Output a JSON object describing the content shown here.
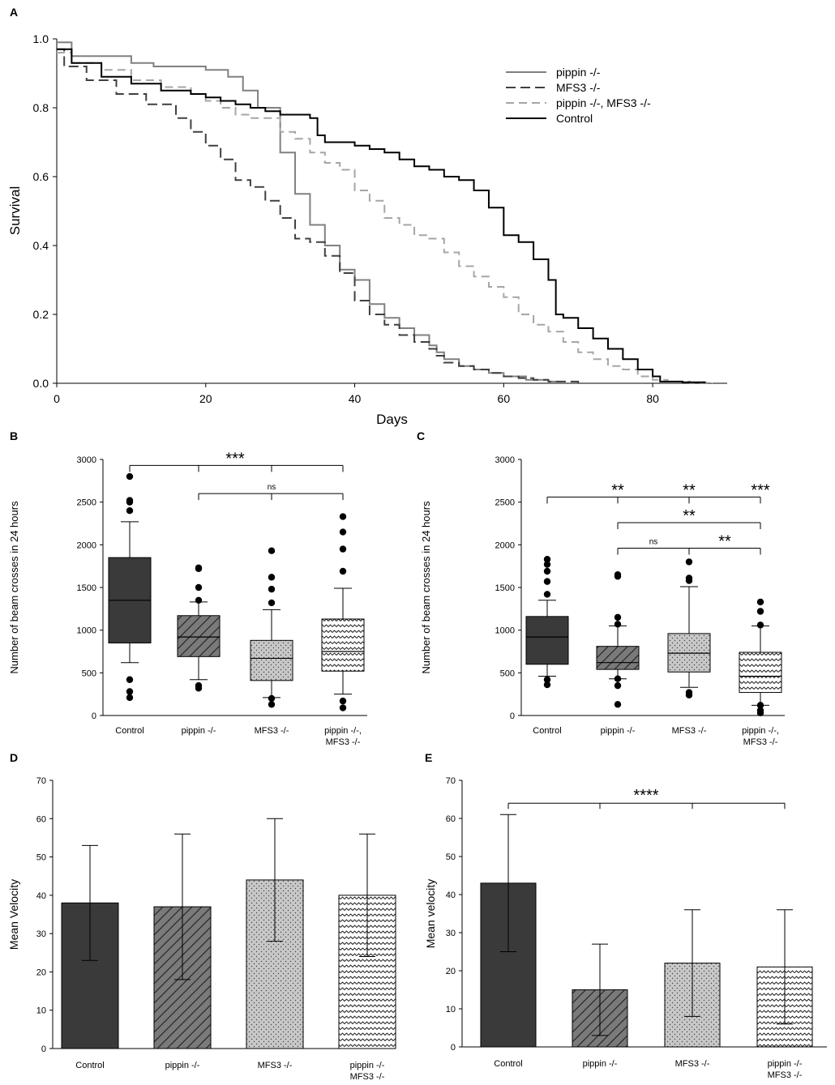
{
  "colors": {
    "control": "#3a3a3a",
    "pippin": "#7a7a7a",
    "mfs3": "#c8c8c8",
    "double": "#ffffff",
    "axis": "#000000",
    "curve_pippin": "#808080",
    "curve_mfs3": "#404040",
    "curve_double": "#a6a6a6",
    "curve_control": "#000000"
  },
  "chart_data": [
    {
      "panel": "A",
      "type": "line",
      "xlabel": "Days",
      "ylabel": "Survival",
      "xlim": [
        0,
        90
      ],
      "ylim": [
        0,
        1.0
      ],
      "xticks": [
        0,
        20,
        40,
        60,
        80
      ],
      "xtick_labels": [
        "0",
        "20",
        "40",
        "60",
        "80"
      ],
      "yticks": [
        0,
        0.2,
        0.4,
        0.6,
        0.8,
        1.0
      ],
      "ytick_labels": [
        "0.0",
        "0.2",
        "0.4",
        "0.6",
        "0.8",
        "1.0"
      ],
      "legend": "top-right",
      "series": [
        {
          "name": "pippin -/-",
          "key": "pippin",
          "dash": "solid",
          "x": [
            0,
            2,
            10,
            13,
            20,
            23,
            25,
            27,
            30,
            32,
            34,
            36,
            38,
            40,
            42,
            44,
            46,
            48,
            50,
            51,
            52,
            54,
            56,
            58,
            60,
            63,
            66,
            67
          ],
          "y": [
            0.99,
            0.95,
            0.93,
            0.92,
            0.91,
            0.89,
            0.85,
            0.8,
            0.67,
            0.55,
            0.46,
            0.4,
            0.33,
            0.3,
            0.23,
            0.19,
            0.16,
            0.14,
            0.11,
            0.09,
            0.07,
            0.05,
            0.04,
            0.03,
            0.02,
            0.01,
            0.005,
            0.0
          ]
        },
        {
          "name": "MFS3 -/-",
          "key": "mfs3",
          "dash": "long",
          "x": [
            0,
            1,
            4,
            8,
            12,
            16,
            18,
            20,
            22,
            24,
            26,
            28,
            30,
            32,
            34,
            36,
            38,
            40,
            42,
            44,
            46,
            48,
            50,
            51,
            52,
            54,
            56,
            58,
            60,
            62,
            64,
            66,
            70
          ],
          "y": [
            0.97,
            0.92,
            0.88,
            0.84,
            0.81,
            0.77,
            0.73,
            0.69,
            0.65,
            0.59,
            0.57,
            0.53,
            0.48,
            0.42,
            0.41,
            0.37,
            0.32,
            0.24,
            0.2,
            0.17,
            0.14,
            0.12,
            0.1,
            0.08,
            0.06,
            0.05,
            0.04,
            0.03,
            0.02,
            0.015,
            0.01,
            0.005,
            0.0
          ]
        },
        {
          "name": "pippin -/-, MFS3 -/-",
          "key": "double",
          "dash": "medium",
          "x": [
            0,
            2,
            6,
            10,
            14,
            18,
            20,
            22,
            24,
            26,
            30,
            32,
            34,
            36,
            38,
            40,
            42,
            44,
            46,
            48,
            50,
            52,
            54,
            56,
            58,
            60,
            62,
            64,
            66,
            68,
            70,
            72,
            74,
            76,
            78,
            80,
            82,
            85,
            88
          ],
          "y": [
            0.96,
            0.93,
            0.91,
            0.88,
            0.86,
            0.84,
            0.82,
            0.8,
            0.78,
            0.77,
            0.73,
            0.71,
            0.67,
            0.64,
            0.62,
            0.56,
            0.53,
            0.48,
            0.46,
            0.43,
            0.42,
            0.38,
            0.34,
            0.31,
            0.28,
            0.25,
            0.2,
            0.17,
            0.15,
            0.12,
            0.09,
            0.07,
            0.05,
            0.04,
            0.02,
            0.01,
            0.005,
            0.002,
            0.0
          ]
        },
        {
          "name": "Control",
          "key": "control",
          "dash": "solid",
          "x": [
            0,
            2,
            6,
            10,
            14,
            18,
            20,
            22,
            24,
            26,
            28,
            30,
            32,
            34,
            35,
            36,
            38,
            40,
            42,
            44,
            46,
            48,
            50,
            52,
            54,
            56,
            58,
            60,
            62,
            64,
            66,
            67,
            68,
            70,
            72,
            74,
            76,
            78,
            80,
            81,
            84,
            87
          ],
          "y": [
            0.97,
            0.93,
            0.89,
            0.87,
            0.85,
            0.84,
            0.83,
            0.82,
            0.81,
            0.8,
            0.79,
            0.78,
            0.78,
            0.77,
            0.72,
            0.7,
            0.7,
            0.69,
            0.68,
            0.67,
            0.65,
            0.63,
            0.62,
            0.6,
            0.59,
            0.56,
            0.51,
            0.43,
            0.41,
            0.36,
            0.3,
            0.2,
            0.19,
            0.16,
            0.13,
            0.1,
            0.07,
            0.04,
            0.02,
            0.005,
            0.003,
            0.0
          ]
        }
      ]
    },
    {
      "panel": "B",
      "type": "box",
      "ylabel": "Number of beam crosses in 24 hours",
      "ylim": [
        0,
        3000
      ],
      "yticks": [
        0,
        500,
        1000,
        1500,
        2000,
        2500,
        3000
      ],
      "ytick_labels": [
        "0",
        "500",
        "1000",
        "1500",
        "2000",
        "2500",
        "3000"
      ],
      "categories": [
        "Control",
        "pippin -/-",
        "MFS3 -/-",
        "pippin -/-,",
        "MFS3 -/-"
      ],
      "group_labels": [
        [
          "Control"
        ],
        [
          "pippin -/-"
        ],
        [
          "MFS3 -/-"
        ],
        [
          "pippin -/-,",
          "MFS3 -/-"
        ]
      ],
      "boxes": [
        {
          "key": "control",
          "q1": 850,
          "median": 1350,
          "q3": 1850,
          "wlo": 620,
          "whi": 2270,
          "outliers": [
            210,
            280,
            420,
            2400,
            2500,
            2520,
            2800
          ]
        },
        {
          "key": "pippin",
          "q1": 690,
          "median": 920,
          "q3": 1170,
          "wlo": 420,
          "whi": 1330,
          "outliers": [
            320,
            350,
            1350,
            1500,
            1720,
            1730
          ]
        },
        {
          "key": "mfs3",
          "q1": 410,
          "median": 670,
          "q3": 880,
          "wlo": 210,
          "whi": 1240,
          "outliers": [
            130,
            200,
            1320,
            1480,
            1620,
            1930
          ]
        },
        {
          "key": "double",
          "q1": 520,
          "median": 750,
          "q3": 1130,
          "wlo": 250,
          "whi": 1490,
          "outliers": [
            90,
            170,
            1690,
            1950,
            2150,
            2330
          ]
        }
      ],
      "significance": [
        {
          "label": "***",
          "from": 0,
          "to": 3,
          "y": 2930,
          "drops": [
            0,
            1,
            2,
            3
          ]
        },
        {
          "label": "ns",
          "from": 1,
          "to": 3,
          "y": 2600,
          "drops": [
            1,
            2,
            3
          ]
        }
      ]
    },
    {
      "panel": "C",
      "type": "box",
      "ylabel": "Number of beam crosses in 24 hours",
      "ylim": [
        0,
        3000
      ],
      "yticks": [
        0,
        500,
        1000,
        1500,
        2000,
        2500,
        3000
      ],
      "ytick_labels": [
        "0",
        "500",
        "1000",
        "1500",
        "2000",
        "2500",
        "3000"
      ],
      "categories": [
        "Control",
        "pippin -/-",
        "MFS3 -/-",
        "pippin -/-,",
        "MFS3 -/-"
      ],
      "group_labels": [
        [
          "Control"
        ],
        [
          "pippin -/-"
        ],
        [
          "MFS3 -/-"
        ],
        [
          "pippin -/-,",
          "MFS3 -/-"
        ]
      ],
      "boxes": [
        {
          "key": "control",
          "q1": 600,
          "median": 920,
          "q3": 1160,
          "wlo": 460,
          "whi": 1350,
          "outliers": [
            360,
            420,
            1420,
            1570,
            1690,
            1770,
            1830
          ]
        },
        {
          "key": "pippin",
          "q1": 540,
          "median": 620,
          "q3": 810,
          "wlo": 430,
          "whi": 1050,
          "outliers": [
            130,
            350,
            430,
            1070,
            1150,
            1630,
            1650
          ]
        },
        {
          "key": "mfs3",
          "q1": 510,
          "median": 730,
          "q3": 960,
          "wlo": 330,
          "whi": 1510,
          "outliers": [
            240,
            270,
            1580,
            1610,
            1800
          ]
        },
        {
          "key": "double",
          "q1": 270,
          "median": 460,
          "q3": 740,
          "wlo": 120,
          "whi": 1050,
          "outliers": [
            30,
            60,
            120,
            1060,
            1220,
            1330
          ]
        }
      ],
      "significance": [
        {
          "label": "**",
          "from": 0,
          "to": 3,
          "y": 2560,
          "drops": [
            0,
            1,
            2,
            3
          ],
          "marks": [
            {
              "label": "**",
              "pos": 1
            },
            {
              "label": "**",
              "pos": 2
            },
            {
              "label": "***",
              "pos": 3
            }
          ]
        },
        {
          "label": "**",
          "from": 1,
          "to": 3,
          "y": 2260,
          "drops": [
            1,
            3
          ],
          "marks": [
            {
              "label": "**",
              "pos": 2
            }
          ]
        },
        {
          "label": "ns",
          "from": 1,
          "to": 3,
          "y": 1960,
          "drops": [
            1,
            2,
            3
          ],
          "marks": [
            {
              "label": "ns",
              "pos": 1.5
            },
            {
              "label": "**",
              "pos": 2.5
            }
          ]
        }
      ]
    },
    {
      "panel": "D",
      "type": "bar",
      "ylabel": "Mean Velocity",
      "ylim": [
        0,
        70
      ],
      "yticks": [
        0,
        10,
        20,
        30,
        40,
        50,
        60,
        70
      ],
      "ytick_labels": [
        "0",
        "10",
        "20",
        "30",
        "40",
        "50",
        "60",
        "70"
      ],
      "categories": [
        "Control",
        "pippin -/-",
        "MFS3 -/-",
        "pippin -/-",
        "MFS3 -/-"
      ],
      "group_labels": [
        [
          "Control"
        ],
        [
          "pippin -/-"
        ],
        [
          "MFS3 -/-"
        ],
        [
          "pippin -/-",
          "MFS3 -/-"
        ]
      ],
      "bars": [
        {
          "key": "control",
          "value": 38,
          "lo": 23,
          "hi": 53
        },
        {
          "key": "pippin",
          "value": 37,
          "lo": 18,
          "hi": 56
        },
        {
          "key": "mfs3",
          "value": 44,
          "lo": 28,
          "hi": 60
        },
        {
          "key": "double",
          "value": 40,
          "lo": 24,
          "hi": 56
        }
      ]
    },
    {
      "panel": "E",
      "type": "bar",
      "ylabel": "Mean velocity",
      "ylim": [
        0,
        70
      ],
      "yticks": [
        0,
        10,
        20,
        30,
        40,
        50,
        60,
        70
      ],
      "ytick_labels": [
        "0",
        "10",
        "20",
        "30",
        "40",
        "50",
        "60",
        "70"
      ],
      "categories": [
        "Control",
        "pippin -/-",
        "MFS3 -/-",
        "pippin -/-",
        "MFS3 -/-"
      ],
      "group_labels": [
        [
          "Control"
        ],
        [
          "pippin -/-"
        ],
        [
          "MFS3 -/-"
        ],
        [
          "pippin -/-",
          "MFS3 -/-"
        ]
      ],
      "bars": [
        {
          "key": "control",
          "value": 43,
          "lo": 25,
          "hi": 61
        },
        {
          "key": "pippin",
          "value": 15,
          "lo": 3,
          "hi": 27
        },
        {
          "key": "mfs3",
          "value": 22,
          "lo": 8,
          "hi": 36
        },
        {
          "key": "double",
          "value": 21,
          "lo": 6,
          "hi": 36
        }
      ],
      "significance": [
        {
          "label": "****",
          "from": 0,
          "to": 3,
          "y": 64,
          "drops": [
            0,
            1,
            2,
            3
          ]
        }
      ]
    }
  ]
}
